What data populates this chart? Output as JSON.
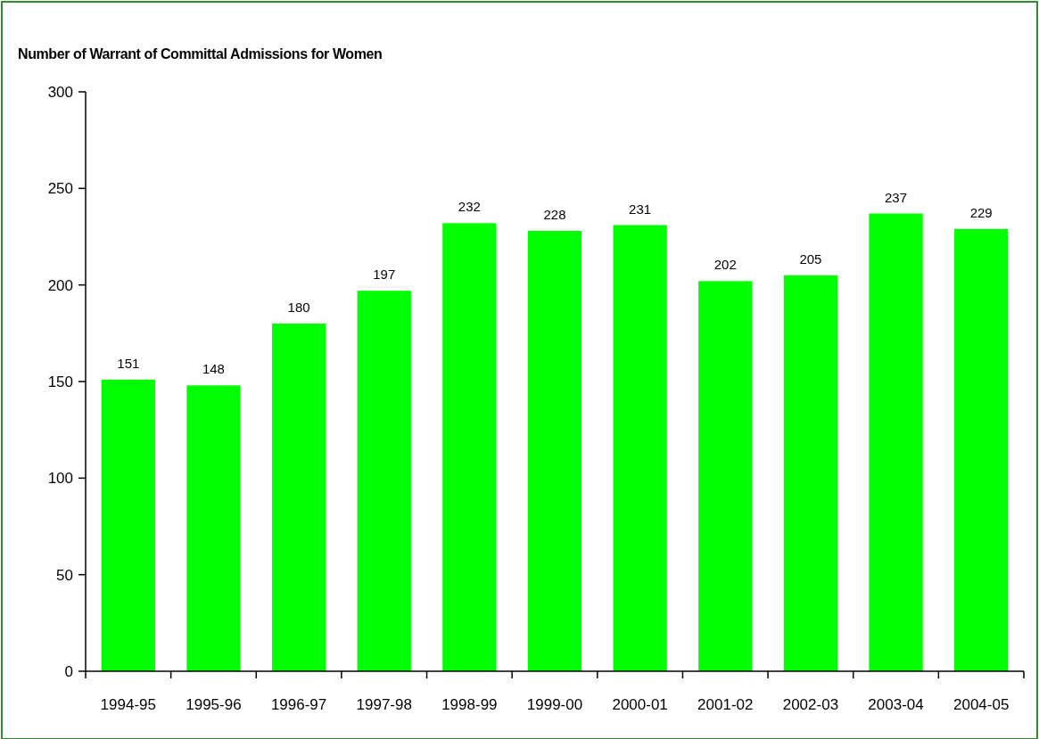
{
  "chart_data": {
    "type": "bar",
    "title": "Number of Warrant of Committal Admissions for Women",
    "categories": [
      "1994-95",
      "1995-96",
      "1996-97",
      "1997-98",
      "1998-99",
      "1999-00",
      "2000-01",
      "2001-02",
      "2002-03",
      "2003-04",
      "2004-05"
    ],
    "values": [
      151,
      148,
      180,
      197,
      232,
      228,
      231,
      202,
      205,
      237,
      229
    ],
    "color": "#00ff00",
    "ylim": [
      0,
      300
    ],
    "yticks": [
      0,
      50,
      100,
      150,
      200,
      250,
      300
    ],
    "data_labels": true
  }
}
